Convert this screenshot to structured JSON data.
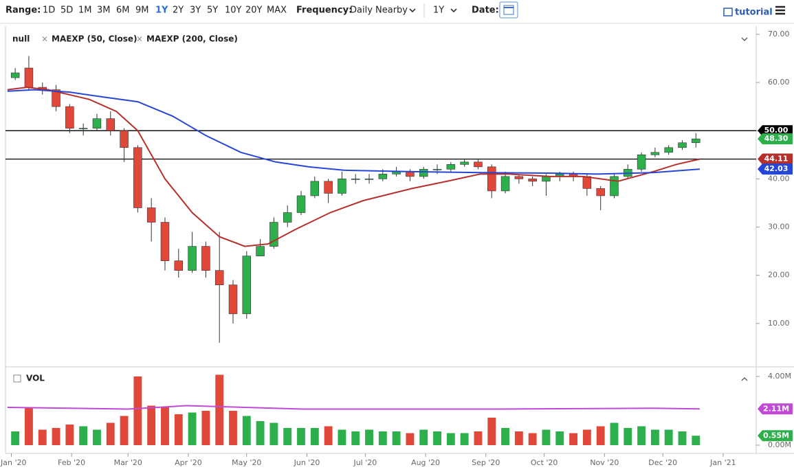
{
  "ui": {
    "range_label": "Range:",
    "ranges": [
      "1D",
      "5D",
      "1M",
      "3M",
      "6M",
      "9M",
      "1Y",
      "2Y",
      "3Y",
      "5Y",
      "10Y",
      "20Y",
      "MAX"
    ],
    "frequency_label": "Frequency:",
    "frequency": "Daily Nearby",
    "period": "1Y",
    "date_label": "Date:",
    "tutorial": "tutorial"
  },
  "chart_data": [
    {
      "type": "candlestick",
      "symbol": "null",
      "up_color": "#2db04b",
      "down_color": "#e0483a",
      "x": [
        2,
        9,
        16,
        23,
        30,
        37,
        44,
        51,
        58,
        65,
        72,
        79,
        86,
        93,
        100,
        107,
        114,
        121,
        128,
        135,
        142,
        149,
        156,
        163,
        170,
        177,
        184,
        191,
        198,
        205,
        212,
        219,
        226,
        233,
        240,
        247,
        254,
        261,
        268,
        275,
        282,
        289,
        296,
        303,
        310,
        317,
        324,
        331,
        338,
        345,
        352
      ],
      "open": [
        61,
        63,
        59,
        58.5,
        55,
        50.5,
        50.5,
        52.5,
        50,
        46.5,
        34,
        31,
        23,
        21,
        26,
        21,
        18,
        12,
        24,
        26,
        31,
        33,
        36.5,
        39.5,
        37,
        40,
        40,
        40,
        41,
        41.5,
        40.5,
        42,
        42,
        43,
        43.5,
        42.5,
        37.5,
        40.5,
        40,
        39.5,
        40.5,
        41,
        40.5,
        38,
        36.5,
        40.5,
        42,
        45,
        45.5,
        46.5,
        47.5
      ],
      "high": [
        63,
        65.5,
        60,
        59.5,
        55.5,
        51.5,
        53.5,
        54,
        50.5,
        47,
        36,
        32,
        25.5,
        29,
        27,
        29,
        19,
        25,
        27.5,
        32,
        34.5,
        37.5,
        40.5,
        40,
        41.5,
        41,
        41,
        42,
        42.5,
        42,
        42.5,
        43,
        43.5,
        44,
        44,
        43,
        41.5,
        41,
        40.5,
        41,
        41.5,
        41.5,
        41,
        38.5,
        41,
        43,
        45.5,
        46.5,
        47,
        48,
        49.5
      ],
      "low": [
        60.5,
        58.5,
        57.5,
        54,
        49.5,
        49,
        50,
        49,
        43.5,
        33,
        27,
        21,
        19.5,
        20.5,
        19.5,
        6,
        10,
        11,
        24,
        25.5,
        30,
        32.5,
        36,
        35,
        36.5,
        39,
        39,
        39.5,
        40.5,
        39.5,
        40,
        41,
        41.5,
        42.5,
        42,
        36,
        37,
        39,
        38.5,
        36.5,
        39.5,
        39.5,
        36.5,
        33.5,
        36,
        40,
        41.5,
        44.5,
        45,
        46,
        46.5
      ],
      "close": [
        62,
        59,
        58.5,
        55,
        50.5,
        50.5,
        52.5,
        50,
        46.5,
        34,
        31,
        23,
        21,
        26,
        21,
        18,
        12,
        24,
        26,
        31,
        33,
        36.5,
        39.5,
        37,
        40,
        40,
        40,
        41,
        41.5,
        40.5,
        42,
        42,
        43,
        43.5,
        42.5,
        37.5,
        40.5,
        40,
        39.5,
        40.5,
        41,
        40.5,
        38,
        36.5,
        40.5,
        42,
        45,
        45.5,
        46.5,
        47.5,
        48.3
      ],
      "series": [
        {
          "name": "MAEXP (50, Close)",
          "color": "#b5302a",
          "x": [
            -2,
            8,
            19,
            40,
            54,
            65,
            79,
            93,
            107,
            120,
            132,
            146,
            164,
            181,
            206,
            224,
            241,
            256,
            277,
            294,
            312,
            330,
            342,
            354
          ],
          "values": [
            58.5,
            59,
            58.5,
            56.5,
            54,
            50,
            40,
            33,
            28,
            26,
            26.5,
            29.5,
            33,
            35.5,
            38,
            39.5,
            41,
            41,
            40.5,
            40.5,
            39.5,
            41.5,
            43,
            44.11
          ]
        },
        {
          "name": "MAEXP (200, Close)",
          "color": "#2546d8",
          "x": [
            -2,
            12,
            30,
            47,
            65,
            83,
            100,
            118,
            136,
            153,
            171,
            206,
            241,
            277,
            301,
            330,
            354
          ],
          "values": [
            58.2,
            58.5,
            58,
            57,
            56,
            53,
            49,
            45.5,
            43.5,
            42.5,
            41.8,
            41.5,
            41.3,
            41.2,
            41,
            41.3,
            42.03
          ]
        }
      ],
      "hlines": [
        50,
        44.11
      ],
      "badges": [
        {
          "value": 50,
          "label": "50.00",
          "color": "#000000"
        },
        {
          "value": 48.3,
          "label": "48.30",
          "color": "#2db04b"
        },
        {
          "value": 44.11,
          "label": "44.11",
          "color": "#b5302a"
        },
        {
          "value": 42.03,
          "label": "42.03",
          "color": "#2546d8"
        }
      ],
      "xlim": [
        -3,
        383
      ],
      "xticks": [
        {
          "value": 0,
          "label": "Jan '20"
        },
        {
          "value": 31,
          "label": "Feb '20"
        },
        {
          "value": 60,
          "label": "Mar '20"
        },
        {
          "value": 91,
          "label": "Apr '20"
        },
        {
          "value": 121,
          "label": "May '20"
        },
        {
          "value": 152,
          "label": "Jun '20"
        },
        {
          "value": 182,
          "label": "Jul '20"
        },
        {
          "value": 213,
          "label": "Aug '20"
        },
        {
          "value": 244,
          "label": "Sep '20"
        },
        {
          "value": 274,
          "label": "Oct '20"
        },
        {
          "value": 305,
          "label": "Nov '20"
        },
        {
          "value": 335,
          "label": "Dec '20"
        },
        {
          "value": 366,
          "label": "Jan '21"
        }
      ],
      "ylim": [
        1,
        71.7
      ],
      "yticks": [
        {
          "value": 70,
          "label": "70.00"
        },
        {
          "value": 60,
          "label": "60.00"
        },
        {
          "value": 50,
          "label": "50.00"
        },
        {
          "value": 40,
          "label": "40.00"
        },
        {
          "value": 30,
          "label": "30.00"
        },
        {
          "value": 20,
          "label": "20.00"
        },
        {
          "value": 10,
          "label": "10.00"
        }
      ]
    },
    {
      "type": "bar",
      "title": "VOL",
      "x": [
        2,
        9,
        16,
        23,
        30,
        37,
        44,
        51,
        58,
        65,
        72,
        79,
        86,
        93,
        100,
        107,
        114,
        121,
        128,
        135,
        142,
        149,
        156,
        163,
        170,
        177,
        184,
        191,
        198,
        205,
        212,
        219,
        226,
        233,
        240,
        247,
        254,
        261,
        268,
        275,
        282,
        289,
        296,
        303,
        310,
        317,
        324,
        331,
        338,
        345,
        352
      ],
      "values": [
        0.8,
        2.2,
        0.9,
        1.0,
        1.2,
        1.1,
        0.9,
        1.3,
        1.7,
        4.0,
        2.3,
        2.2,
        1.8,
        1.9,
        2.0,
        4.1,
        2.0,
        1.7,
        1.4,
        1.3,
        1.0,
        1.0,
        1.0,
        1.1,
        0.9,
        0.8,
        0.9,
        0.8,
        0.8,
        0.7,
        0.9,
        0.8,
        0.7,
        0.7,
        0.8,
        1.6,
        1.0,
        0.8,
        0.7,
        0.9,
        0.8,
        0.7,
        0.9,
        1.1,
        1.3,
        1.0,
        1.1,
        0.9,
        0.9,
        0.8,
        0.55
      ],
      "series": [
        {
          "color": "#c04ad6",
          "x": [
            -2,
            60,
            90,
            150,
            250,
            330,
            354
          ],
          "values": [
            2.2,
            2.1,
            2.3,
            2.1,
            2.1,
            2.15,
            2.11
          ]
        }
      ],
      "badges": [
        {
          "value": 2.11,
          "label": "2.11M",
          "color": "#c04ad6"
        },
        {
          "value": 0.55,
          "label": "0.55M",
          "color": "#2db04b"
        }
      ],
      "ylim": [
        -0.48,
        4.32
      ],
      "yticks": [
        {
          "value": 4,
          "label": "4.00M"
        },
        {
          "value": 0,
          "label": "0.00M"
        }
      ]
    }
  ]
}
